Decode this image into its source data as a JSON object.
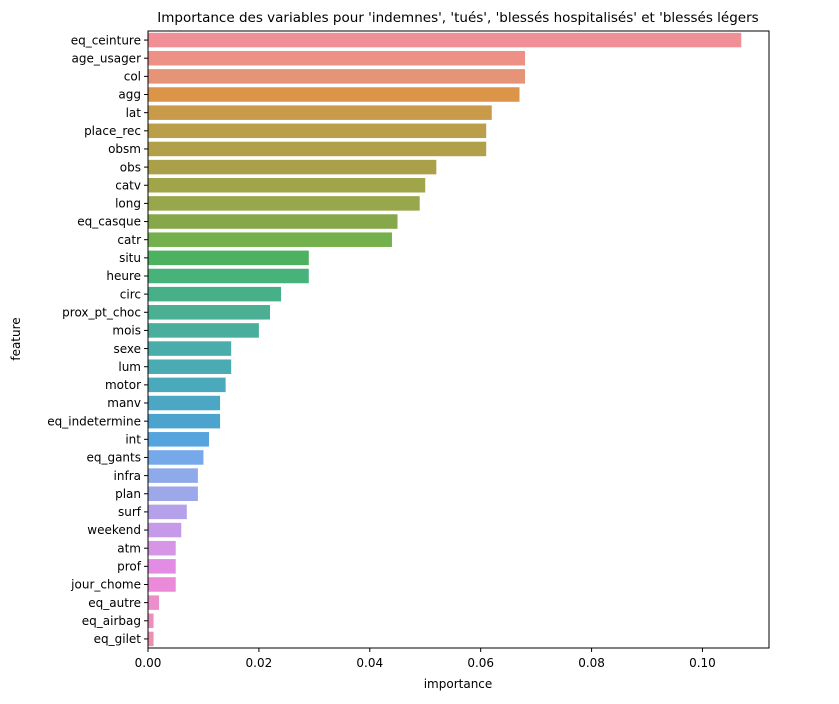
{
  "chart_data": {
    "type": "bar",
    "orientation": "horizontal",
    "title": "Importance des variables pour 'indemnes', 'tués', 'blessés hospitalisés' et 'blessés légers",
    "xlabel": "importance",
    "ylabel": "feature",
    "xlim": [
      0,
      0.112
    ],
    "xticks": [
      "0.00",
      "0.02",
      "0.04",
      "0.06",
      "0.08",
      "0.10"
    ],
    "grid": false,
    "categories": [
      "eq_ceinture",
      "age_usager",
      "col",
      "agg",
      "lat",
      "place_rec",
      "obsm",
      "obs",
      "catv",
      "long",
      "eq_casque",
      "catr",
      "situ",
      "heure",
      "circ",
      "prox_pt_choc",
      "mois",
      "sexe",
      "lum",
      "motor",
      "manv",
      "eq_indetermine",
      "int",
      "eq_gants",
      "infra",
      "plan",
      "surf",
      "weekend",
      "atm",
      "prof",
      "jour_chome",
      "eq_autre",
      "eq_airbag",
      "eq_gilet"
    ],
    "values": [
      0.107,
      0.068,
      0.068,
      0.067,
      0.062,
      0.061,
      0.061,
      0.052,
      0.05,
      0.049,
      0.045,
      0.044,
      0.029,
      0.029,
      0.024,
      0.022,
      0.02,
      0.015,
      0.015,
      0.014,
      0.013,
      0.013,
      0.011,
      0.01,
      0.009,
      0.009,
      0.007,
      0.006,
      0.005,
      0.005,
      0.005,
      0.002,
      0.001,
      0.001
    ],
    "colors": [
      "#f08f96",
      "#ed9186",
      "#e69477",
      "#dc9448",
      "#c89a49",
      "#bb9e4a",
      "#b29f49",
      "#a9a049",
      "#a1a54a",
      "#98a74b",
      "#86a84b",
      "#74b04b",
      "#4db25f",
      "#48b27b",
      "#48b088",
      "#4aaf93",
      "#4aae9c",
      "#4badaa",
      "#4babb3",
      "#4ba9bc",
      "#4ca7c4",
      "#4ca4ce",
      "#55a4de",
      "#76a9e9",
      "#8eaaea",
      "#9da8ea",
      "#b4a1ea",
      "#c59ae8",
      "#d795e5",
      "#e38ce4",
      "#ea8ad8",
      "#eb8fca",
      "#ec8fbd",
      "#ec90b0"
    ]
  }
}
